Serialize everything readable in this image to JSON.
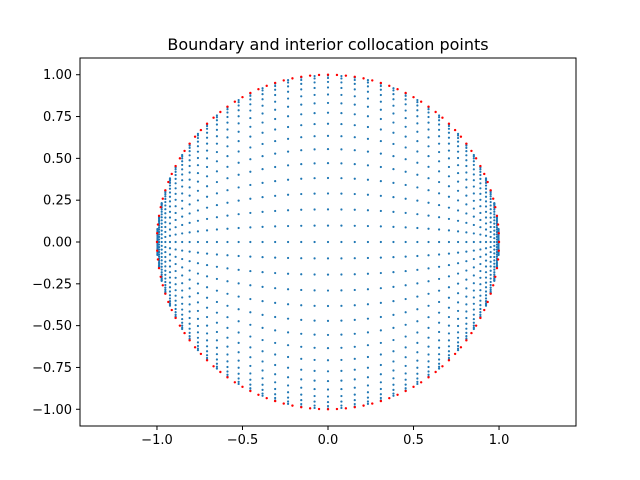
{
  "chart_data": {
    "type": "scatter",
    "title": "Boundary and interior collocation points",
    "xlabel": "",
    "ylabel": "",
    "xlim": [
      -1.45,
      1.45
    ],
    "ylim": [
      -1.1,
      1.1
    ],
    "aspect": "equal",
    "grid": false,
    "xticks": [
      -1.0,
      -0.5,
      0.0,
      0.5,
      1.0
    ],
    "xtick_labels": [
      "−1.0",
      "−0.5",
      "0.0",
      "0.5",
      "1.0"
    ],
    "yticks": [
      -1.0,
      -0.75,
      -0.5,
      -0.25,
      0.0,
      0.25,
      0.5,
      0.75,
      1.0
    ],
    "ytick_labels": [
      "−1.00",
      "−0.75",
      "−0.50",
      "−0.25",
      "0.00",
      "0.25",
      "0.50",
      "0.75",
      "1.00"
    ],
    "series": [
      {
        "role": "interior",
        "color": "#1f77b4",
        "marker_size": 1.6,
        "distribution": "Chebyshev-spaced points (x = cos θ, y = sin θ · cos φ) filling the unit disk",
        "theta_count": 41,
        "phi_count": 33
      },
      {
        "role": "boundary",
        "color": "#ff0000",
        "marker_size": 1.8,
        "distribution": "evenly spaced points on the unit circle x² + y² = 1",
        "count": 120
      }
    ]
  }
}
